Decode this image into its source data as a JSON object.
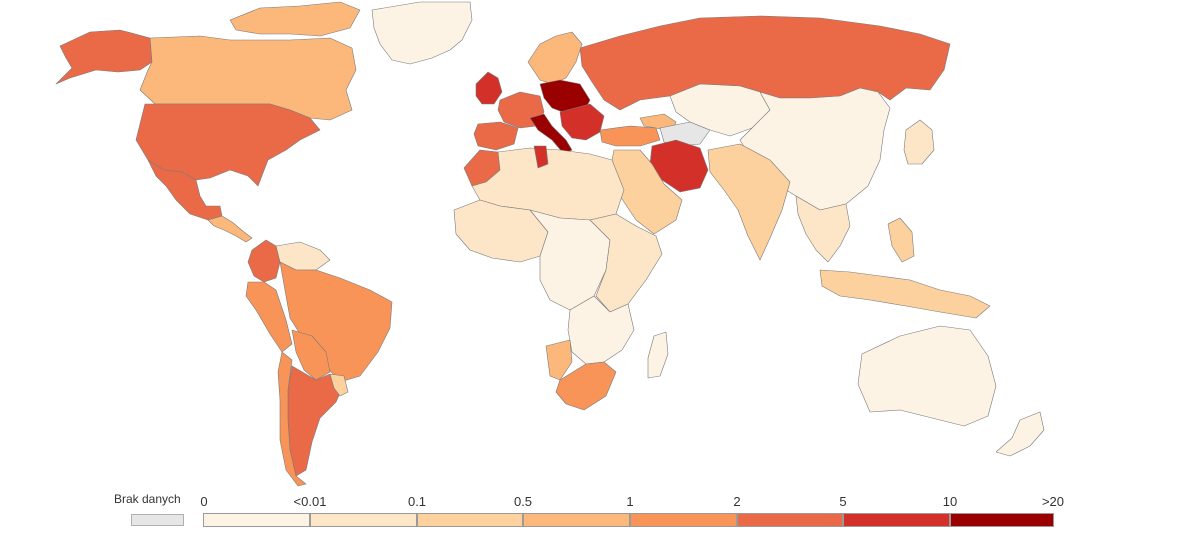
{
  "legend": {
    "no_data_label": "Brak danych",
    "no_data_color": "#e6e6e6",
    "ticks": [
      "0",
      "<0.01",
      "0.1",
      "0.5",
      "1",
      "2",
      "5",
      "10",
      ">20"
    ],
    "bins": [
      {
        "from": "0",
        "to": "<0.01",
        "color": "#fdf3e5"
      },
      {
        "from": "<0.01",
        "to": "0.1",
        "color": "#fde6c7"
      },
      {
        "from": "0.1",
        "to": "0.5",
        "color": "#fdd19d"
      },
      {
        "from": "0.5",
        "to": "1",
        "color": "#fcb77a"
      },
      {
        "from": "1",
        "to": "2",
        "color": "#f89458"
      },
      {
        "from": "2",
        "to": "5",
        "color": "#ea6a48"
      },
      {
        "from": "5",
        "to": "10",
        "color": "#d3302a"
      },
      {
        "from": "10",
        "to": ">20",
        "color": "#9b0000"
      }
    ]
  },
  "regions": [
    {
      "name": "greenland",
      "bin": 0
    },
    {
      "name": "canada",
      "bin": 3
    },
    {
      "name": "alaska",
      "bin": 5
    },
    {
      "name": "usa",
      "bin": 5
    },
    {
      "name": "mexico",
      "bin": 5
    },
    {
      "name": "central-america",
      "bin": 3
    },
    {
      "name": "colombia",
      "bin": 5
    },
    {
      "name": "venezuela",
      "bin": 1
    },
    {
      "name": "peru",
      "bin": 4
    },
    {
      "name": "brazil",
      "bin": 4
    },
    {
      "name": "bolivia",
      "bin": 4
    },
    {
      "name": "argentina",
      "bin": 5
    },
    {
      "name": "chile",
      "bin": 4
    },
    {
      "name": "uruguay",
      "bin": 2
    },
    {
      "name": "russia",
      "bin": 5
    },
    {
      "name": "scandinavia",
      "bin": 3
    },
    {
      "name": "uk",
      "bin": 6
    },
    {
      "name": "western-europe",
      "bin": 5
    },
    {
      "name": "central-europe",
      "bin": 7
    },
    {
      "name": "italy",
      "bin": 7
    },
    {
      "name": "balkans",
      "bin": 6
    },
    {
      "name": "iberia",
      "bin": 5
    },
    {
      "name": "turkey",
      "bin": 4
    },
    {
      "name": "iran",
      "bin": 6
    },
    {
      "name": "north-africa",
      "bin": 1
    },
    {
      "name": "morocco",
      "bin": 5
    },
    {
      "name": "tunisia",
      "bin": 6
    },
    {
      "name": "west-africa",
      "bin": 1
    },
    {
      "name": "central-africa",
      "bin": 0
    },
    {
      "name": "east-africa",
      "bin": 1
    },
    {
      "name": "southern-africa",
      "bin": 0
    },
    {
      "name": "namibia",
      "bin": 3
    },
    {
      "name": "south-africa",
      "bin": 4
    },
    {
      "name": "madagascar",
      "bin": 0
    },
    {
      "name": "arabia",
      "bin": 2
    },
    {
      "name": "central-asia",
      "bin": 0
    },
    {
      "name": "india",
      "bin": 2
    },
    {
      "name": "china-mongolia",
      "bin": 0
    },
    {
      "name": "japan",
      "bin": 1
    },
    {
      "name": "southeast-asia",
      "bin": 1
    },
    {
      "name": "indonesia",
      "bin": 2
    },
    {
      "name": "philippines",
      "bin": 2
    },
    {
      "name": "australia",
      "bin": 0
    },
    {
      "name": "new-zealand",
      "bin": 0
    },
    {
      "name": "caucasus",
      "bin": 3
    },
    {
      "name": "no-data-region",
      "bin": -1
    }
  ]
}
